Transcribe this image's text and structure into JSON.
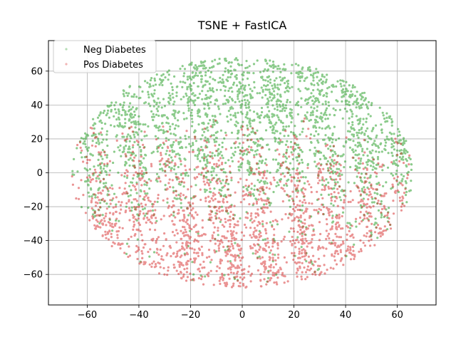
{
  "chart_data": {
    "type": "scatter",
    "title": "TSNE + FastICA",
    "xlabel": "",
    "ylabel": "",
    "xlim": [
      -75,
      75
    ],
    "ylim": [
      -78,
      78
    ],
    "xticks": [
      -60,
      -40,
      -20,
      0,
      20,
      40,
      60
    ],
    "yticks": [
      -60,
      -40,
      -20,
      0,
      20,
      40,
      60
    ],
    "grid": true,
    "legend_position": "top-left",
    "series": [
      {
        "name": "Neg Diabetes",
        "color": "#2ca02c"
      },
      {
        "name": "Pos Diabetes",
        "color": "#d62728"
      }
    ]
  }
}
